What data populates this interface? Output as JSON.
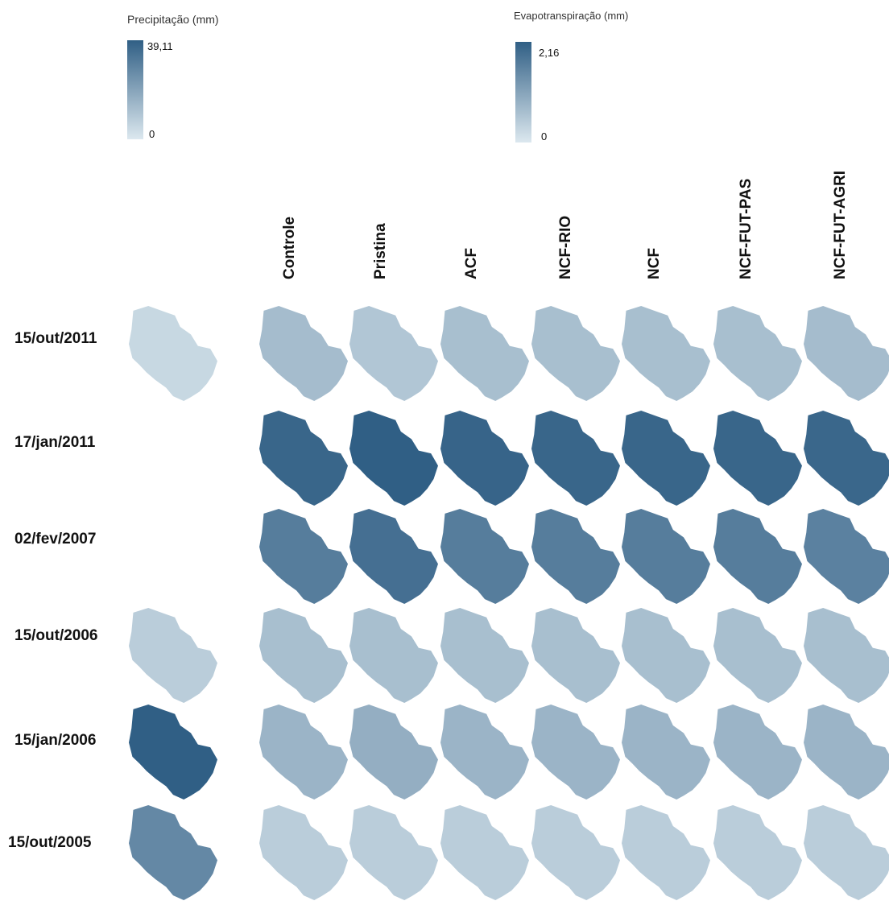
{
  "legends": [
    {
      "title": "Precipitação (mm)",
      "max": "39,11",
      "min": "0",
      "color_low": "#dce8ef",
      "color_high": "#305f85"
    },
    {
      "title": "Evapotranspiração (mm)",
      "max": "2,16",
      "min": "0",
      "color_low": "#dce8ef",
      "color_high": "#305f85"
    }
  ],
  "columns": [
    "Controle",
    "Pristina",
    "ACF",
    "NCF-RIO",
    "NCF",
    "NCF-FUT-PAS",
    "NCF-FUT-AGRI"
  ],
  "rows": [
    {
      "date": "15/out/2011",
      "precip_level": 0.12,
      "et_levels": [
        0.32,
        0.25,
        0.3,
        0.3,
        0.3,
        0.3,
        0.32
      ]
    },
    {
      "date": "17/jan/2011",
      "precip_level": null,
      "et_levels": [
        0.95,
        1.0,
        0.96,
        0.95,
        0.95,
        0.95,
        0.94
      ]
    },
    {
      "date": "02/fev/2007",
      "precip_level": null,
      "et_levels": [
        0.78,
        0.88,
        0.78,
        0.78,
        0.78,
        0.78,
        0.75
      ]
    },
    {
      "date": "15/out/2006",
      "precip_level": 0.2,
      "et_levels": [
        0.3,
        0.3,
        0.3,
        0.3,
        0.3,
        0.3,
        0.3
      ]
    },
    {
      "date": "15/jan/2006",
      "precip_level": 1.0,
      "et_levels": [
        0.38,
        0.42,
        0.38,
        0.38,
        0.38,
        0.38,
        0.38
      ]
    },
    {
      "date": "15/out/2005",
      "precip_level": 0.7,
      "et_levels": [
        0.2,
        0.2,
        0.2,
        0.2,
        0.2,
        0.2,
        0.2
      ]
    }
  ]
}
